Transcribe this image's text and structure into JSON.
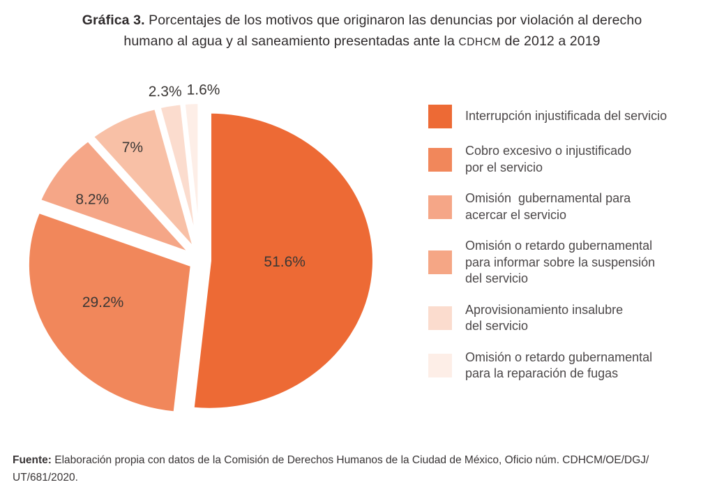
{
  "title": {
    "figure_label": "Gráfica 3.",
    "line1_rest": " Porcentajes de los motivos que originaron las denuncias por violación al derecho",
    "line2_before": "humano al agua y al saneamiento presentadas ante la ",
    "abbr": "CDHCM",
    "line2_after": " de 2012 a 2019"
  },
  "chart_data": {
    "type": "pie",
    "unit": "%",
    "start_angle": "top, clockwise",
    "legend_position": "right",
    "slices": [
      {
        "label": "Interrupción injustificada del servicio",
        "value": 51.6,
        "display": "51.6%",
        "color": "#ED6A35",
        "legend_color": "#ED6A35"
      },
      {
        "label": "Cobro excesivo o injustificado por el servicio",
        "value": 29.2,
        "display": "29.2%",
        "color": "#F1875B",
        "legend_color": "#F1875B"
      },
      {
        "label": "Omisión  gubernamental para acercar el servicio",
        "value": 8.2,
        "display": "8.2%",
        "color": "#F5A687",
        "legend_color": "#F5A687"
      },
      {
        "label": "Omisión o retardo gubernamental para informar sobre la suspensión del servicio",
        "value": 7,
        "display": "7%",
        "color": "#F8C0A6",
        "legend_color": "#F5A685"
      },
      {
        "label": "Aprovisionamiento insalubre del servicio",
        "value": 2.3,
        "display": "2.3%",
        "color": "#FBDCCE",
        "legend_color": "#FBDCCE"
      },
      {
        "label": "Omisión o retardo gubernamental para la reparación de fugas",
        "value": 1.6,
        "display": "1.6%",
        "color": "#FDEEE7",
        "legend_color": "#FDEEE7"
      }
    ],
    "legend": [
      {
        "lines": [
          "Interrupción injustificada del servicio"
        ]
      },
      {
        "lines": [
          "Cobro excesivo o injustificado",
          "por el servicio"
        ]
      },
      {
        "lines": [
          "Omisión  gubernamental para",
          "acercar el servicio"
        ]
      },
      {
        "lines": [
          "Omisión o retardo gubernamental",
          "para informar sobre la suspensión",
          "del servicio"
        ]
      },
      {
        "lines": [
          "Aprovisionamiento insalubre",
          "del servicio"
        ]
      },
      {
        "lines": [
          "Omisión o retardo gubernamental",
          "para la reparación de fugas"
        ]
      }
    ],
    "slice_label_color": "#3b3735"
  },
  "footer": {
    "label": "Fuente:",
    "text_line1": " Elaboración propia con datos de la Comisión de Derechos Humanos de la Ciudad de México, Oficio núm. CDHCM/OE/DGJ/",
    "text_line2": "UT/681/2020."
  }
}
